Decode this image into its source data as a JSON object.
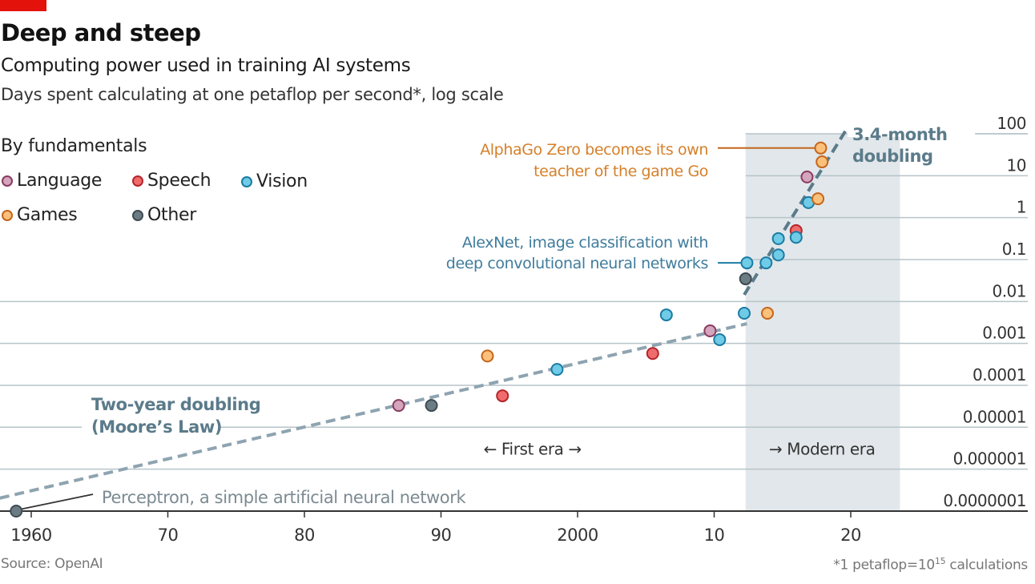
{
  "header": {
    "title": "Deep and steep",
    "subtitle": "Computing power used in training AI systems",
    "description": "Days spent calculating at one petaflop per second*, log scale",
    "brand_color": "#e3120b"
  },
  "legend": {
    "title": "By fundamentals",
    "items": [
      {
        "key": "language",
        "label": "Language",
        "fill": "#d4a5bd",
        "stroke": "#8a3b5f"
      },
      {
        "key": "speech",
        "label": "Speech",
        "fill": "#f06b6b",
        "stroke": "#b3262c"
      },
      {
        "key": "vision",
        "label": "Vision",
        "fill": "#6fcbe6",
        "stroke": "#1b7ba3"
      },
      {
        "key": "games",
        "label": "Games",
        "fill": "#fbc07a",
        "stroke": "#c4661c"
      },
      {
        "key": "other",
        "label": "Other",
        "fill": "#6c7c84",
        "stroke": "#3f4b52"
      }
    ]
  },
  "footer": {
    "source": "Source: OpenAI",
    "note_prefix": "*1 petaflop=10",
    "note_exp": "15",
    "note_suffix": " calculations"
  },
  "chart_data": {
    "type": "scatter",
    "title": "Deep and steep",
    "subtitle": "Computing power used in training AI systems",
    "ylabel": "Days spent calculating at one petaflop per second*, log scale",
    "xlabel": "",
    "y_scale": "log",
    "xlim": [
      1957.7,
      2033.2
    ],
    "ylim_log10": [
      -7,
      2
    ],
    "x_ticks": [
      {
        "value": 1960,
        "label": "1960"
      },
      {
        "value": 1970,
        "label": "70"
      },
      {
        "value": 1980,
        "label": "80"
      },
      {
        "value": 1990,
        "label": "90"
      },
      {
        "value": 2000,
        "label": "2000"
      },
      {
        "value": 2010,
        "label": "10"
      },
      {
        "value": 2020,
        "label": "20"
      }
    ],
    "y_ticks": [
      {
        "log10": 2,
        "label": "100"
      },
      {
        "log10": 1,
        "label": "10"
      },
      {
        "log10": 0,
        "label": "1"
      },
      {
        "log10": -1,
        "label": "0.1"
      },
      {
        "log10": -2,
        "label": "0.01"
      },
      {
        "log10": -3,
        "label": "0.001"
      },
      {
        "log10": -4,
        "label": "0.0001"
      },
      {
        "log10": -5,
        "label": "0.00001"
      },
      {
        "log10": -6,
        "label": "0.000001"
      },
      {
        "log10": -7,
        "label": "0.0000001"
      }
    ],
    "grid": true,
    "legend_position": "top-left",
    "shaded_region": {
      "label": "Modern era",
      "x_start": 2012.3,
      "x_end": 2023.6,
      "color": "#e1e7ea"
    },
    "era_labels": [
      {
        "text": "← First era →",
        "x": 1996.7,
        "log10": -5.5
      },
      {
        "text": "→ Modern era",
        "x": 2017.9,
        "log10": -5.5
      }
    ],
    "trend_lines": [
      {
        "name": "Two-year doubling (Moore's Law)",
        "x0": 1957.7,
        "log10_0": -6.69,
        "x1": 2012.4,
        "log10_1": -2.53,
        "color": "#8ea4b0"
      },
      {
        "name": "3.4-month doubling",
        "x0": 2012.2,
        "log10_0": -1.84,
        "x1": 2019.6,
        "log10_1": 2.06,
        "color": "#5b7b8a"
      }
    ],
    "series": [
      {
        "name": "Language",
        "key": "language",
        "points": [
          {
            "x": 1986.9,
            "log10": -4.48
          },
          {
            "x": 2009.7,
            "log10": -2.7
          },
          {
            "x": 2016.8,
            "log10": 0.97
          }
        ]
      },
      {
        "name": "Speech",
        "key": "speech",
        "points": [
          {
            "x": 1994.5,
            "log10": -4.25
          },
          {
            "x": 2005.5,
            "log10": -3.24
          },
          {
            "x": 2016.0,
            "log10": -0.31
          }
        ]
      },
      {
        "name": "Vision",
        "key": "vision",
        "points": [
          {
            "x": 1998.5,
            "log10": -3.62
          },
          {
            "x": 2006.5,
            "log10": -2.32
          },
          {
            "x": 2010.4,
            "log10": -2.91
          },
          {
            "x": 2012.2,
            "log10": -2.28
          },
          {
            "x": 2012.4,
            "log10": -1.08
          },
          {
            "x": 2013.8,
            "log10": -1.08
          },
          {
            "x": 2014.7,
            "log10": -0.89
          },
          {
            "x": 2014.7,
            "log10": -0.5
          },
          {
            "x": 2016.0,
            "log10": -0.47
          },
          {
            "x": 2016.9,
            "log10": 0.36
          }
        ]
      },
      {
        "name": "Games",
        "key": "games",
        "points": [
          {
            "x": 1993.4,
            "log10": -3.3
          },
          {
            "x": 2013.9,
            "log10": -2.28
          },
          {
            "x": 2017.6,
            "log10": 0.45
          },
          {
            "x": 2017.9,
            "log10": 1.33
          },
          {
            "x": 2017.8,
            "log10": 1.66
          }
        ]
      },
      {
        "name": "Other",
        "key": "other",
        "points": [
          {
            "x": 1958.9,
            "log10": -7.0
          },
          {
            "x": 1989.3,
            "log10": -4.48
          },
          {
            "x": 2012.3,
            "log10": -1.46
          }
        ]
      }
    ],
    "annotations": [
      {
        "id": "alphago",
        "lines": [
          "AlphaGo Zero becomes its own",
          "teacher of the game Go"
        ],
        "color": "#d5802b",
        "leader_color": "#c4661c",
        "point": {
          "x": 2017.8,
          "log10": 1.66
        },
        "align": "right"
      },
      {
        "id": "alexnet",
        "lines": [
          "AlexNet, image classification with",
          "deep convolutional neural networks"
        ],
        "color": "#3f7c9c",
        "leader_color": "#1b7ba3",
        "point": {
          "x": 2012.4,
          "log10": -1.08
        },
        "align": "right"
      },
      {
        "id": "perceptron",
        "lines": [
          "Perceptron, a simple artificial neural network"
        ],
        "color": "#7c8a92",
        "leader_color": "#333333",
        "point": {
          "x": 1958.9,
          "log10": -7.0
        },
        "align": "left"
      },
      {
        "id": "moore",
        "lines": [
          "Two-year doubling",
          "(Moore’s Law)"
        ],
        "color": "#5b7b8a",
        "align": "left",
        "bold": true
      },
      {
        "id": "fast",
        "lines": [
          "3.4-month",
          "doubling"
        ],
        "color": "#5b7b8a",
        "align": "left",
        "bold": true
      }
    ]
  }
}
